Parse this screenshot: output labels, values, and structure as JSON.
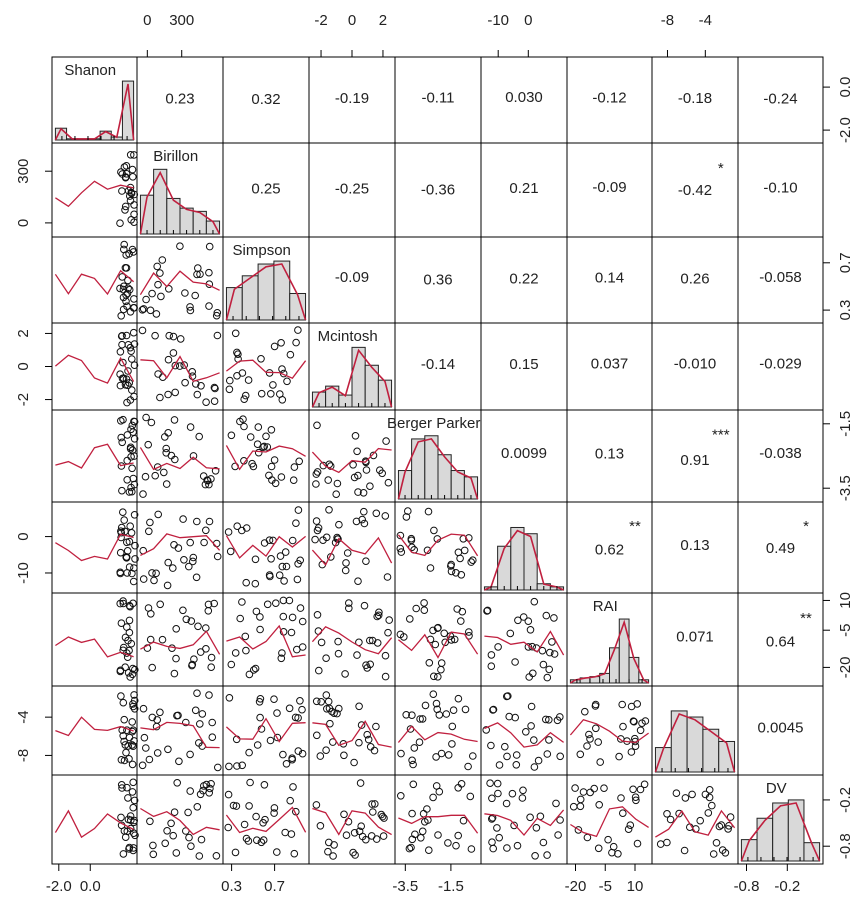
{
  "chart_data": {
    "type": "scatter-matrix",
    "variables": [
      "Shanon",
      "Birillon",
      "Simpson",
      "Mcintosh",
      "Berger Parker",
      "",
      "RAI",
      "",
      "DV"
    ],
    "top_axis_labels": [
      {
        "text": "0",
        "col": 1,
        "at": 0.12
      },
      {
        "text": "300",
        "col": 1,
        "at": 0.52
      },
      {
        "text": "-2",
        "col": 3,
        "at": 0.14
      },
      {
        "text": "0",
        "col": 3,
        "at": 0.5
      },
      {
        "text": "2",
        "col": 3,
        "at": 0.86
      },
      {
        "text": "-10",
        "col": 5,
        "at": 0.2
      },
      {
        "text": "0",
        "col": 5,
        "at": 0.55
      },
      {
        "text": "-8",
        "col": 7,
        "at": 0.18
      },
      {
        "text": "-4",
        "col": 7,
        "at": 0.62
      }
    ],
    "bottom_axis_labels": [
      {
        "text": "-2.0",
        "col": 0,
        "at": 0.08
      },
      {
        "text": "0.0",
        "col": 0,
        "at": 0.45
      },
      {
        "text": "0.3",
        "col": 2,
        "at": 0.1
      },
      {
        "text": "0.7",
        "col": 2,
        "at": 0.6
      },
      {
        "text": "-3.5",
        "col": 4,
        "at": 0.12
      },
      {
        "text": "-1.5",
        "col": 4,
        "at": 0.65
      },
      {
        "text": "-20",
        "col": 6,
        "at": 0.1
      },
      {
        "text": "-5",
        "col": 6,
        "at": 0.45
      },
      {
        "text": "10",
        "col": 6,
        "at": 0.8
      },
      {
        "text": "-0.8",
        "col": 8,
        "at": 0.1
      },
      {
        "text": "-0.2",
        "col": 8,
        "at": 0.58
      }
    ],
    "left_axis_labels": [
      {
        "text": "300",
        "row": 1,
        "at": 0.3
      },
      {
        "text": "0",
        "row": 1,
        "at": 0.85
      },
      {
        "text": "2",
        "row": 3,
        "at": 0.12
      },
      {
        "text": "0",
        "row": 3,
        "at": 0.5
      },
      {
        "text": "-2",
        "row": 3,
        "at": 0.88
      },
      {
        "text": "0",
        "row": 5,
        "at": 0.38
      },
      {
        "text": "-10",
        "row": 5,
        "at": 0.78
      },
      {
        "text": "-4",
        "row": 7,
        "at": 0.35
      },
      {
        "text": "-8",
        "row": 7,
        "at": 0.78
      }
    ],
    "right_axis_labels": [
      {
        "text": "0.0",
        "row": 0,
        "at": 0.35
      },
      {
        "text": "-2.0",
        "row": 0,
        "at": 0.85
      },
      {
        "text": "0.7",
        "row": 2,
        "at": 0.3
      },
      {
        "text": "0.3",
        "row": 2,
        "at": 0.85
      },
      {
        "text": "-1.5",
        "row": 4,
        "at": 0.15
      },
      {
        "text": "-3.5",
        "row": 4,
        "at": 0.85
      },
      {
        "text": "10",
        "row": 6,
        "at": 0.08
      },
      {
        "text": "-5",
        "row": 6,
        "at": 0.4
      },
      {
        "text": "-20",
        "row": 6,
        "at": 0.8
      },
      {
        "text": "-0.2",
        "row": 8,
        "at": 0.28
      },
      {
        "text": "-0.8",
        "row": 8,
        "at": 0.8
      }
    ],
    "correlations": [
      {
        "row": 0,
        "col": 1,
        "value": "0.23",
        "stars": ""
      },
      {
        "row": 0,
        "col": 2,
        "value": "0.32",
        "stars": ""
      },
      {
        "row": 0,
        "col": 3,
        "value": "-0.19",
        "stars": ""
      },
      {
        "row": 0,
        "col": 4,
        "value": "-0.11",
        "stars": ""
      },
      {
        "row": 0,
        "col": 5,
        "value": "0.030",
        "stars": ""
      },
      {
        "row": 0,
        "col": 6,
        "value": "-0.12",
        "stars": ""
      },
      {
        "row": 0,
        "col": 7,
        "value": "-0.18",
        "stars": ""
      },
      {
        "row": 0,
        "col": 8,
        "value": "-0.24",
        "stars": ""
      },
      {
        "row": 1,
        "col": 2,
        "value": "0.25",
        "stars": ""
      },
      {
        "row": 1,
        "col": 3,
        "value": "-0.25",
        "stars": ""
      },
      {
        "row": 1,
        "col": 4,
        "value": "-0.36",
        "stars": ""
      },
      {
        "row": 1,
        "col": 5,
        "value": "0.21",
        "stars": ""
      },
      {
        "row": 1,
        "col": 6,
        "value": "-0.09",
        "stars": ""
      },
      {
        "row": 1,
        "col": 7,
        "value": "-0.42",
        "stars": "*"
      },
      {
        "row": 1,
        "col": 8,
        "value": "-0.10",
        "stars": ""
      },
      {
        "row": 2,
        "col": 3,
        "value": "-0.09",
        "stars": ""
      },
      {
        "row": 2,
        "col": 4,
        "value": "0.36",
        "stars": ""
      },
      {
        "row": 2,
        "col": 5,
        "value": "0.22",
        "stars": ""
      },
      {
        "row": 2,
        "col": 6,
        "value": "0.14",
        "stars": ""
      },
      {
        "row": 2,
        "col": 7,
        "value": "0.26",
        "stars": ""
      },
      {
        "row": 2,
        "col": 8,
        "value": "-0.058",
        "stars": ""
      },
      {
        "row": 3,
        "col": 4,
        "value": "-0.14",
        "stars": ""
      },
      {
        "row": 3,
        "col": 5,
        "value": "0.15",
        "stars": ""
      },
      {
        "row": 3,
        "col": 6,
        "value": "0.037",
        "stars": ""
      },
      {
        "row": 3,
        "col": 7,
        "value": "-0.010",
        "stars": ""
      },
      {
        "row": 3,
        "col": 8,
        "value": "-0.029",
        "stars": ""
      },
      {
        "row": 4,
        "col": 5,
        "value": "0.0099",
        "stars": ""
      },
      {
        "row": 4,
        "col": 6,
        "value": "0.13",
        "stars": ""
      },
      {
        "row": 4,
        "col": 7,
        "value": "0.91",
        "stars": "***"
      },
      {
        "row": 4,
        "col": 8,
        "value": "-0.038",
        "stars": ""
      },
      {
        "row": 5,
        "col": 6,
        "value": "0.62",
        "stars": "**"
      },
      {
        "row": 5,
        "col": 7,
        "value": "0.13",
        "stars": ""
      },
      {
        "row": 5,
        "col": 8,
        "value": "0.49",
        "stars": "*"
      },
      {
        "row": 6,
        "col": 7,
        "value": "0.071",
        "stars": ""
      },
      {
        "row": 6,
        "col": 8,
        "value": "0.64",
        "stars": "**"
      },
      {
        "row": 7,
        "col": 8,
        "value": "0.0045",
        "stars": ""
      }
    ],
    "histograms": [
      [
        0.2,
        0.02,
        0.02,
        0.02,
        0.15,
        0.05,
        1.0
      ],
      [
        0.6,
        1.0,
        0.55,
        0.4,
        0.35,
        0.2
      ],
      [
        0.55,
        0.75,
        0.95,
        1.0,
        0.45
      ],
      [
        0.25,
        0.35,
        0.2,
        1.0,
        0.7,
        0.45
      ],
      [
        0.45,
        0.95,
        1.0,
        0.7,
        0.45,
        0.35
      ],
      [
        0.05,
        0.7,
        1.0,
        0.9,
        0.1,
        0.05
      ],
      [
        0.05,
        0.08,
        0.1,
        0.15,
        0.55,
        1.0,
        0.4,
        0.05
      ],
      [
        0.4,
        1.0,
        0.9,
        0.7,
        0.5
      ],
      [
        0.35,
        0.7,
        0.95,
        1.0,
        0.3
      ]
    ],
    "grid": false,
    "colors": {
      "smoother": "#c0203f",
      "stars": "#b22a46",
      "hist_fill": "#d9d9d9"
    }
  }
}
